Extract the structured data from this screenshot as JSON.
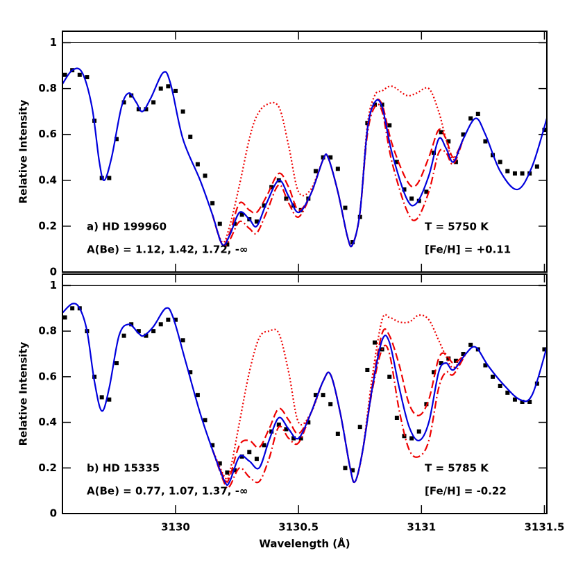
{
  "chart_data": [
    {
      "type": "line",
      "label": "a) HD 199960",
      "abundance": "A(Be) = 1.12, 1.42, 1.72, -∞",
      "temperature": "T = 5750 K",
      "metallicity": "[Fe/H] = +0.11",
      "ylabel": "Relative Intensity",
      "xlim": [
        3129.54,
        3131.51
      ],
      "ylim": [
        0,
        1.05
      ],
      "xticks": [
        3130,
        3130.5,
        3131,
        3131.5
      ],
      "show_xtick_labels": false,
      "yticks": [
        0,
        0.2,
        0.4,
        0.6,
        0.8,
        1
      ],
      "hline": 1,
      "series": [
        {
          "color": "#0000dd",
          "dash": "solid",
          "x": [
            3129.54,
            3129.58,
            3129.62,
            3129.66,
            3129.69,
            3129.71,
            3129.74,
            3129.78,
            3129.81,
            3129.84,
            3129.865,
            3129.9,
            3129.95,
            3129.98,
            3130.03,
            3130.1,
            3130.15,
            3130.19,
            3130.22,
            3130.26,
            3130.3,
            3130.33,
            3130.37,
            3130.42,
            3130.46,
            3130.5,
            3130.55,
            3130.6,
            3130.62,
            3130.66,
            3130.7,
            3130.72,
            3130.75,
            3130.78,
            3130.81,
            3130.84,
            3130.88,
            3130.94,
            3130.98,
            3131.03,
            3131.07,
            3131.1,
            3131.13,
            3131.17,
            3131.22,
            3131.26,
            3131.32,
            3131.39,
            3131.45,
            3131.51
          ],
          "values": [
            0.82,
            0.88,
            0.87,
            0.72,
            0.48,
            0.4,
            0.5,
            0.72,
            0.78,
            0.74,
            0.7,
            0.76,
            0.87,
            0.82,
            0.58,
            0.4,
            0.25,
            0.12,
            0.16,
            0.26,
            0.23,
            0.2,
            0.3,
            0.4,
            0.33,
            0.26,
            0.34,
            0.49,
            0.5,
            0.35,
            0.15,
            0.12,
            0.26,
            0.62,
            0.74,
            0.72,
            0.52,
            0.32,
            0.3,
            0.42,
            0.58,
            0.54,
            0.48,
            0.58,
            0.67,
            0.6,
            0.44,
            0.36,
            0.46,
            0.67
          ]
        },
        {
          "color": "#ee0000",
          "dash": "dashed",
          "x": [
            3130.15,
            3130.19,
            3130.22,
            3130.26,
            3130.3,
            3130.33,
            3130.37,
            3130.42,
            3130.46,
            3130.5,
            3130.55,
            3130.6,
            3130.62,
            3130.66,
            3130.7,
            3130.72,
            3130.75,
            3130.78,
            3130.81,
            3130.84,
            3130.88,
            3130.94,
            3130.98,
            3131.03,
            3131.07,
            3131.1,
            3131.13,
            3131.17
          ],
          "values": [
            0.25,
            0.12,
            0.17,
            0.3,
            0.27,
            0.26,
            0.33,
            0.43,
            0.37,
            0.27,
            0.34,
            0.49,
            0.5,
            0.35,
            0.15,
            0.12,
            0.26,
            0.62,
            0.74,
            0.73,
            0.56,
            0.4,
            0.38,
            0.5,
            0.62,
            0.58,
            0.5,
            0.58
          ]
        },
        {
          "color": "#ee0000",
          "dash": "dashdot",
          "x": [
            3130.15,
            3130.19,
            3130.22,
            3130.26,
            3130.3,
            3130.33,
            3130.37,
            3130.42,
            3130.46,
            3130.5,
            3130.55,
            3130.6,
            3130.62,
            3130.66,
            3130.7,
            3130.72,
            3130.75,
            3130.78,
            3130.81,
            3130.84,
            3130.88,
            3130.94,
            3130.98,
            3131.03,
            3131.07,
            3131.1,
            3131.13,
            3131.17
          ],
          "values": [
            0.25,
            0.12,
            0.14,
            0.22,
            0.19,
            0.17,
            0.26,
            0.38,
            0.3,
            0.24,
            0.34,
            0.49,
            0.5,
            0.35,
            0.15,
            0.12,
            0.26,
            0.6,
            0.72,
            0.7,
            0.48,
            0.27,
            0.23,
            0.35,
            0.52,
            0.52,
            0.47,
            0.58
          ]
        },
        {
          "color": "#ee0000",
          "dash": "dotted",
          "x": [
            3130.15,
            3130.19,
            3130.22,
            3130.26,
            3130.3,
            3130.33,
            3130.37,
            3130.42,
            3130.46,
            3130.5,
            3130.55,
            3130.6,
            3130.62,
            3130.66,
            3130.7,
            3130.72,
            3130.75,
            3130.78,
            3130.81,
            3130.84,
            3130.88,
            3130.94,
            3130.98,
            3131.03,
            3131.07,
            3131.1,
            3131.13,
            3131.17
          ],
          "values": [
            0.25,
            0.13,
            0.2,
            0.38,
            0.58,
            0.68,
            0.73,
            0.72,
            0.55,
            0.35,
            0.36,
            0.49,
            0.5,
            0.35,
            0.15,
            0.12,
            0.26,
            0.64,
            0.77,
            0.79,
            0.81,
            0.77,
            0.78,
            0.8,
            0.7,
            0.58,
            0.49,
            0.58
          ]
        }
      ],
      "observed": {
        "color": "#000000",
        "marker": "square",
        "x": [
          3129.55,
          3129.58,
          3129.61,
          3129.64,
          3129.67,
          3129.7,
          3129.73,
          3129.76,
          3129.79,
          3129.82,
          3129.85,
          3129.88,
          3129.91,
          3129.94,
          3129.97,
          3130,
          3130.03,
          3130.06,
          3130.09,
          3130.12,
          3130.15,
          3130.18,
          3130.21,
          3130.24,
          3130.27,
          3130.3,
          3130.33,
          3130.36,
          3130.39,
          3130.42,
          3130.45,
          3130.48,
          3130.51,
          3130.54,
          3130.57,
          3130.6,
          3130.63,
          3130.66,
          3130.69,
          3130.72,
          3130.75,
          3130.78,
          3130.81,
          3130.84,
          3130.87,
          3130.9,
          3130.93,
          3130.96,
          3130.99,
          3131.02,
          3131.05,
          3131.08,
          3131.11,
          3131.14,
          3131.17,
          3131.2,
          3131.23,
          3131.26,
          3131.29,
          3131.32,
          3131.35,
          3131.38,
          3131.41,
          3131.44,
          3131.47,
          3131.5
        ],
        "values": [
          0.86,
          0.88,
          0.86,
          0.85,
          0.66,
          0.41,
          0.41,
          0.58,
          0.74,
          0.77,
          0.71,
          0.71,
          0.74,
          0.8,
          0.81,
          0.79,
          0.7,
          0.59,
          0.47,
          0.42,
          0.3,
          0.21,
          0.12,
          0.21,
          0.25,
          0.23,
          0.22,
          0.29,
          0.37,
          0.4,
          0.32,
          0.29,
          0.27,
          0.32,
          0.44,
          0.5,
          0.5,
          0.45,
          0.28,
          0.13,
          0.24,
          0.65,
          0.73,
          0.73,
          0.64,
          0.48,
          0.36,
          0.32,
          0.31,
          0.35,
          0.52,
          0.61,
          0.57,
          0.48,
          0.6,
          0.67,
          0.69,
          0.57,
          0.51,
          0.48,
          0.44,
          0.43,
          0.43,
          0.43,
          0.46,
          0.62
        ]
      }
    },
    {
      "type": "line",
      "label": "b) HD 15335",
      "abundance": "A(Be) = 0.77, 1.07, 1.37, -∞",
      "temperature": "T = 5785 K",
      "metallicity": "[Fe/H] = -0.22",
      "ylabel": "Relative Intensity",
      "xlabel": "Wavelength (Å)",
      "xlim": [
        3129.54,
        3131.51
      ],
      "ylim": [
        0,
        1.05
      ],
      "xticks": [
        3130,
        3130.5,
        3131,
        3131.5
      ],
      "show_xtick_labels": true,
      "yticks": [
        0,
        0.2,
        0.4,
        0.6,
        0.8,
        1
      ],
      "hline": 1,
      "series": [
        {
          "color": "#0000dd",
          "dash": "solid",
          "x": [
            3129.54,
            3129.58,
            3129.61,
            3129.64,
            3129.67,
            3129.7,
            3129.73,
            3129.77,
            3129.81,
            3129.85,
            3129.87,
            3129.91,
            3129.96,
            3129.99,
            3130.04,
            3130.1,
            3130.15,
            3130.2,
            3130.22,
            3130.26,
            3130.3,
            3130.34,
            3130.38,
            3130.42,
            3130.46,
            3130.5,
            3130.55,
            3130.6,
            3130.63,
            3130.67,
            3130.71,
            3130.73,
            3130.76,
            3130.8,
            3130.84,
            3130.87,
            3130.91,
            3130.95,
            3130.99,
            3131.03,
            3131.07,
            3131.1,
            3131.13,
            3131.18,
            3131.22,
            3131.27,
            3131.33,
            3131.4,
            3131.45,
            3131.51
          ],
          "values": [
            0.88,
            0.92,
            0.9,
            0.8,
            0.58,
            0.45,
            0.55,
            0.78,
            0.83,
            0.79,
            0.78,
            0.82,
            0.9,
            0.86,
            0.67,
            0.44,
            0.28,
            0.14,
            0.14,
            0.25,
            0.23,
            0.2,
            0.32,
            0.42,
            0.37,
            0.33,
            0.44,
            0.58,
            0.61,
            0.44,
            0.2,
            0.14,
            0.27,
            0.55,
            0.76,
            0.75,
            0.55,
            0.38,
            0.32,
            0.4,
            0.62,
            0.66,
            0.63,
            0.7,
            0.73,
            0.65,
            0.57,
            0.5,
            0.52,
            0.73
          ]
        },
        {
          "color": "#ee0000",
          "dash": "dashed",
          "x": [
            3130.15,
            3130.2,
            3130.22,
            3130.26,
            3130.3,
            3130.34,
            3130.38,
            3130.42,
            3130.46,
            3130.5,
            3130.55,
            3130.6,
            3130.63,
            3130.67,
            3130.71,
            3130.73,
            3130.76,
            3130.8,
            3130.84,
            3130.87,
            3130.91,
            3130.95,
            3130.99,
            3131.03,
            3131.07,
            3131.1,
            3131.13,
            3131.18
          ],
          "values": [
            0.28,
            0.15,
            0.16,
            0.3,
            0.32,
            0.29,
            0.37,
            0.46,
            0.41,
            0.35,
            0.44,
            0.58,
            0.61,
            0.44,
            0.2,
            0.14,
            0.27,
            0.56,
            0.79,
            0.78,
            0.65,
            0.48,
            0.43,
            0.5,
            0.68,
            0.7,
            0.66,
            0.7
          ]
        },
        {
          "color": "#ee0000",
          "dash": "dashdot",
          "x": [
            3130.15,
            3130.2,
            3130.22,
            3130.26,
            3130.3,
            3130.34,
            3130.38,
            3130.42,
            3130.46,
            3130.5,
            3130.55,
            3130.6,
            3130.63,
            3130.67,
            3130.71,
            3130.73,
            3130.76,
            3130.8,
            3130.84,
            3130.87,
            3130.91,
            3130.95,
            3130.99,
            3131.03,
            3131.07,
            3131.1,
            3131.13,
            3131.18
          ],
          "values": [
            0.28,
            0.13,
            0.12,
            0.2,
            0.16,
            0.14,
            0.24,
            0.38,
            0.33,
            0.31,
            0.44,
            0.58,
            0.61,
            0.44,
            0.2,
            0.14,
            0.27,
            0.54,
            0.72,
            0.7,
            0.45,
            0.28,
            0.25,
            0.32,
            0.55,
            0.62,
            0.61,
            0.7
          ]
        },
        {
          "color": "#ee0000",
          "dash": "dotted",
          "x": [
            3130.15,
            3130.2,
            3130.22,
            3130.26,
            3130.3,
            3130.34,
            3130.38,
            3130.42,
            3130.46,
            3130.5,
            3130.55,
            3130.6,
            3130.63,
            3130.67,
            3130.71,
            3130.73,
            3130.76,
            3130.8,
            3130.84,
            3130.87,
            3130.91,
            3130.95,
            3130.99,
            3131.03,
            3131.07,
            3131.1,
            3131.13,
            3131.18
          ],
          "values": [
            0.28,
            0.16,
            0.18,
            0.4,
            0.62,
            0.77,
            0.8,
            0.79,
            0.62,
            0.4,
            0.44,
            0.58,
            0.61,
            0.44,
            0.2,
            0.14,
            0.27,
            0.6,
            0.85,
            0.86,
            0.84,
            0.84,
            0.87,
            0.85,
            0.76,
            0.69,
            0.64,
            0.7
          ]
        }
      ],
      "observed": {
        "color": "#000000",
        "marker": "square",
        "x": [
          3129.55,
          3129.58,
          3129.61,
          3129.64,
          3129.67,
          3129.7,
          3129.73,
          3129.76,
          3129.79,
          3129.82,
          3129.85,
          3129.88,
          3129.91,
          3129.94,
          3129.97,
          3130,
          3130.03,
          3130.06,
          3130.09,
          3130.12,
          3130.15,
          3130.18,
          3130.21,
          3130.24,
          3130.27,
          3130.3,
          3130.33,
          3130.36,
          3130.39,
          3130.42,
          3130.45,
          3130.48,
          3130.51,
          3130.54,
          3130.57,
          3130.6,
          3130.63,
          3130.66,
          3130.69,
          3130.72,
          3130.75,
          3130.78,
          3130.81,
          3130.84,
          3130.87,
          3130.9,
          3130.93,
          3130.96,
          3130.99,
          3131.02,
          3131.05,
          3131.08,
          3131.11,
          3131.14,
          3131.17,
          3131.2,
          3131.23,
          3131.26,
          3131.29,
          3131.32,
          3131.35,
          3131.38,
          3131.41,
          3131.44,
          3131.47,
          3131.5
        ],
        "values": [
          0.86,
          0.9,
          0.9,
          0.8,
          0.6,
          0.51,
          0.5,
          0.66,
          0.78,
          0.83,
          0.8,
          0.78,
          0.8,
          0.83,
          0.85,
          0.85,
          0.76,
          0.62,
          0.52,
          0.41,
          0.3,
          0.22,
          0.18,
          0.19,
          0.25,
          0.27,
          0.24,
          0.3,
          0.36,
          0.39,
          0.37,
          0.33,
          0.33,
          0.4,
          0.52,
          0.52,
          0.48,
          0.35,
          0.2,
          0.19,
          0.38,
          0.63,
          0.75,
          0.72,
          0.6,
          0.42,
          0.34,
          0.33,
          0.36,
          0.48,
          0.62,
          0.66,
          0.68,
          0.67,
          0.7,
          0.74,
          0.72,
          0.65,
          0.6,
          0.56,
          0.53,
          0.5,
          0.49,
          0.49,
          0.57,
          0.72
        ]
      }
    }
  ]
}
